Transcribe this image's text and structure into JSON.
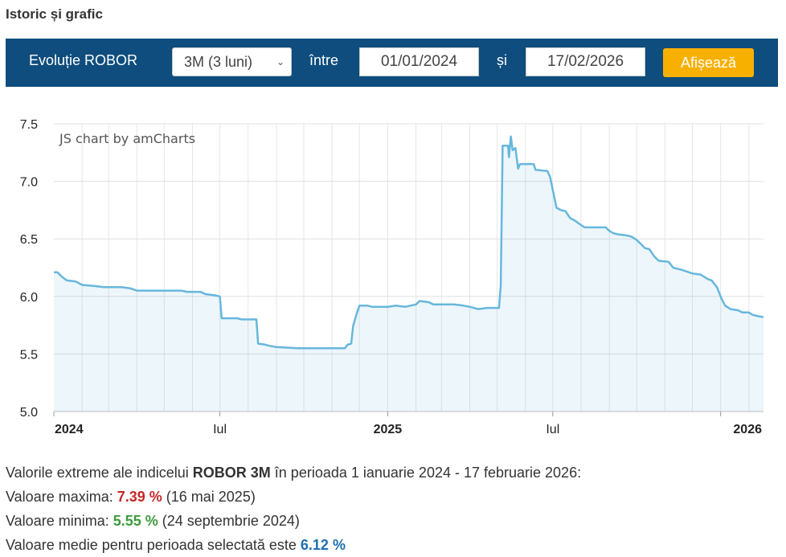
{
  "header": {
    "title": "Istoric și grafic"
  },
  "filter": {
    "label": "Evoluție ROBOR",
    "select_value": "3M (3 luni)",
    "between_label": "între",
    "start_date": "01/01/2024",
    "and_label": "și",
    "end_date": "17/02/2026",
    "button_label": "Afișează"
  },
  "colors": {
    "bar_bg": "#0e4d7d",
    "button": "#f8b000",
    "line": "#67b7dc",
    "max": "#c62828",
    "min": "#3c9a3c",
    "avg": "#1f6fae"
  },
  "chart_data": {
    "type": "area",
    "watermark": "JS chart by amCharts",
    "ylim": [
      5.0,
      7.5
    ],
    "yticks": [
      "5.0",
      "5.5",
      "6.0",
      "6.5",
      "7.0",
      "7.5"
    ],
    "x_range": [
      "2024-01-01",
      "2026-02-17"
    ],
    "xticks": [
      {
        "date": "2024-01-01",
        "label": "2024",
        "bold": true
      },
      {
        "date": "2024-07-01",
        "label": "Iul",
        "bold": false
      },
      {
        "date": "2025-01-01",
        "label": "2025",
        "bold": true
      },
      {
        "date": "2025-07-01",
        "label": "Iul",
        "bold": false
      },
      {
        "date": "2026-01-01",
        "label": "2026",
        "bold": true
      }
    ],
    "grid": true,
    "points": [
      [
        "2024-01-01",
        6.21
      ],
      [
        "2024-01-05",
        6.21
      ],
      [
        "2024-01-10",
        6.17
      ],
      [
        "2024-01-15",
        6.14
      ],
      [
        "2024-01-25",
        6.13
      ],
      [
        "2024-02-01",
        6.1
      ],
      [
        "2024-02-15",
        6.09
      ],
      [
        "2024-02-25",
        6.08
      ],
      [
        "2024-03-15",
        6.08
      ],
      [
        "2024-03-25",
        6.07
      ],
      [
        "2024-04-01",
        6.05
      ],
      [
        "2024-04-15",
        6.05
      ],
      [
        "2024-05-01",
        6.05
      ],
      [
        "2024-05-20",
        6.05
      ],
      [
        "2024-05-26",
        6.04
      ],
      [
        "2024-06-10",
        6.04
      ],
      [
        "2024-06-15",
        6.02
      ],
      [
        "2024-06-25",
        6.01
      ],
      [
        "2024-07-01",
        6.0
      ],
      [
        "2024-07-03",
        5.81
      ],
      [
        "2024-07-20",
        5.81
      ],
      [
        "2024-07-25",
        5.8
      ],
      [
        "2024-08-10",
        5.8
      ],
      [
        "2024-08-12",
        5.59
      ],
      [
        "2024-08-20",
        5.58
      ],
      [
        "2024-08-25",
        5.57
      ],
      [
        "2024-09-01",
        5.56
      ],
      [
        "2024-09-24",
        5.55
      ],
      [
        "2024-11-15",
        5.55
      ],
      [
        "2024-11-18",
        5.58
      ],
      [
        "2024-11-22",
        5.59
      ],
      [
        "2024-11-24",
        5.74
      ],
      [
        "2024-11-28",
        5.85
      ],
      [
        "2024-12-01",
        5.92
      ],
      [
        "2024-12-10",
        5.92
      ],
      [
        "2024-12-15",
        5.91
      ],
      [
        "2025-01-01",
        5.91
      ],
      [
        "2025-01-10",
        5.92
      ],
      [
        "2025-01-20",
        5.91
      ],
      [
        "2025-02-01",
        5.93
      ],
      [
        "2025-02-05",
        5.96
      ],
      [
        "2025-02-15",
        5.95
      ],
      [
        "2025-02-20",
        5.93
      ],
      [
        "2025-03-15",
        5.93
      ],
      [
        "2025-03-25",
        5.92
      ],
      [
        "2025-04-01",
        5.91
      ],
      [
        "2025-04-10",
        5.89
      ],
      [
        "2025-04-20",
        5.9
      ],
      [
        "2025-05-03",
        5.9
      ],
      [
        "2025-05-05",
        6.1
      ],
      [
        "2025-05-07",
        7.31
      ],
      [
        "2025-05-13",
        7.31
      ],
      [
        "2025-05-14",
        7.21
      ],
      [
        "2025-05-16",
        7.39
      ],
      [
        "2025-05-18",
        7.27
      ],
      [
        "2025-05-21",
        7.29
      ],
      [
        "2025-05-24",
        7.11
      ],
      [
        "2025-05-26",
        7.15
      ],
      [
        "2025-06-10",
        7.15
      ],
      [
        "2025-06-12",
        7.1
      ],
      [
        "2025-06-25",
        7.09
      ],
      [
        "2025-06-28",
        7.04
      ],
      [
        "2025-07-03",
        6.85
      ],
      [
        "2025-07-05",
        6.77
      ],
      [
        "2025-07-10",
        6.75
      ],
      [
        "2025-07-15",
        6.74
      ],
      [
        "2025-07-20",
        6.68
      ],
      [
        "2025-07-25",
        6.66
      ],
      [
        "2025-08-01",
        6.62
      ],
      [
        "2025-08-05",
        6.6
      ],
      [
        "2025-08-28",
        6.6
      ],
      [
        "2025-09-01",
        6.57
      ],
      [
        "2025-09-05",
        6.55
      ],
      [
        "2025-09-10",
        6.54
      ],
      [
        "2025-09-20",
        6.53
      ],
      [
        "2025-09-25",
        6.52
      ],
      [
        "2025-10-01",
        6.49
      ],
      [
        "2025-10-05",
        6.46
      ],
      [
        "2025-10-10",
        6.42
      ],
      [
        "2025-10-15",
        6.41
      ],
      [
        "2025-10-20",
        6.35
      ],
      [
        "2025-10-25",
        6.31
      ],
      [
        "2025-11-05",
        6.3
      ],
      [
        "2025-11-10",
        6.25
      ],
      [
        "2025-11-20",
        6.23
      ],
      [
        "2025-12-01",
        6.2
      ],
      [
        "2025-12-10",
        6.19
      ],
      [
        "2025-12-18",
        6.15
      ],
      [
        "2025-12-22",
        6.14
      ],
      [
        "2025-12-28",
        6.08
      ],
      [
        "2026-01-02",
        5.98
      ],
      [
        "2026-01-06",
        5.92
      ],
      [
        "2026-01-12",
        5.89
      ],
      [
        "2026-01-20",
        5.88
      ],
      [
        "2026-01-25",
        5.86
      ],
      [
        "2026-02-01",
        5.86
      ],
      [
        "2026-02-05",
        5.84
      ],
      [
        "2026-02-10",
        5.83
      ],
      [
        "2026-02-17",
        5.82
      ]
    ]
  },
  "stats": {
    "intro_pre": "Valorile extreme ale indicelui ",
    "index_name": "ROBOR 3M",
    "intro_post": " în perioada 1 ianuarie 2024 - 17 februarie 2026:",
    "max_label": "Valoare maxima: ",
    "max_value": "7.39 %",
    "max_date": " (16 mai 2025)",
    "min_label": "Valoare minima: ",
    "min_value": "5.55 %",
    "min_date": " (24 septembrie 2024)",
    "avg_label": "Valoare medie pentru perioada selectată este ",
    "avg_value": "6.12 %"
  }
}
